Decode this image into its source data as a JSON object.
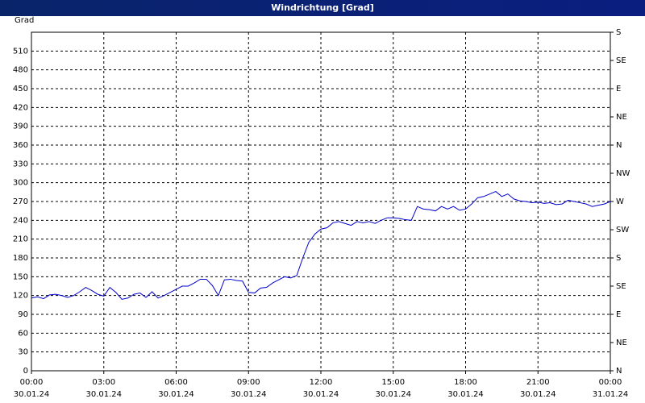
{
  "chart_data": {
    "type": "line",
    "title": "Windrichtung [Grad]",
    "y_label": "Grad",
    "x": [
      0,
      0.25,
      0.5,
      0.75,
      1,
      1.25,
      1.5,
      1.75,
      2,
      2.25,
      2.5,
      2.75,
      3,
      3.25,
      3.5,
      3.75,
      4,
      4.25,
      4.5,
      4.75,
      5,
      5.25,
      5.5,
      5.75,
      6,
      6.25,
      6.5,
      6.75,
      7,
      7.25,
      7.5,
      7.75,
      8,
      8.25,
      8.5,
      8.75,
      9,
      9.25,
      9.5,
      9.75,
      10,
      10.25,
      10.5,
      10.75,
      11,
      11.25,
      11.5,
      11.75,
      12,
      12.25,
      12.5,
      12.75,
      13,
      13.25,
      13.5,
      13.75,
      14,
      14.25,
      14.5,
      14.75,
      15,
      15.25,
      15.5,
      15.75,
      16,
      16.25,
      16.5,
      16.75,
      17,
      17.25,
      17.5,
      17.75,
      18,
      18.25,
      18.5,
      18.75,
      19,
      19.25,
      19.5,
      19.75,
      20,
      20.25,
      20.5,
      20.75,
      21,
      21.25,
      21.5,
      21.75,
      22,
      22.25,
      22.5,
      22.75,
      23,
      23.25,
      23.5,
      23.75,
      24
    ],
    "series": [
      {
        "name": "Windrichtung",
        "color": "#0000cc",
        "values": [
          116,
          118,
          115,
          121,
          122,
          120,
          117,
          120,
          126,
          133,
          128,
          122,
          119,
          133,
          125,
          114,
          116,
          122,
          124,
          117,
          126,
          116,
          120,
          125,
          130,
          135,
          135,
          140,
          146,
          146,
          136,
          120,
          145,
          146,
          144,
          143,
          125,
          124,
          132,
          133,
          140,
          145,
          150,
          148,
          152,
          180,
          205,
          218,
          226,
          228,
          236,
          238,
          235,
          232,
          238,
          236,
          238,
          235,
          240,
          244,
          244,
          243,
          241,
          240,
          262,
          258,
          257,
          255,
          262,
          258,
          262,
          256,
          258,
          266,
          276,
          278,
          282,
          286,
          278,
          282,
          274,
          271,
          270,
          268,
          269,
          267,
          268,
          265,
          266,
          272,
          270,
          268,
          266,
          262,
          264,
          266,
          270
        ]
      }
    ],
    "xlim": [
      0,
      24
    ],
    "xticks": [
      {
        "value": 0,
        "label": "00:00"
      },
      {
        "value": 3,
        "label": "03:00"
      },
      {
        "value": 6,
        "label": "06:00"
      },
      {
        "value": 9,
        "label": "09:00"
      },
      {
        "value": 12,
        "label": "12:00"
      },
      {
        "value": 15,
        "label": "15:00"
      },
      {
        "value": 18,
        "label": "18:00"
      },
      {
        "value": 21,
        "label": "21:00"
      },
      {
        "value": 24,
        "label": "00:00"
      }
    ],
    "xtick_dates": [
      "30.01.24",
      "30.01.24",
      "30.01.24",
      "30.01.24",
      "30.01.24",
      "30.01.24",
      "30.01.24",
      "30.01.24",
      "31.01.24"
    ],
    "ylim": [
      0,
      540
    ],
    "yticks": [
      0,
      30,
      60,
      90,
      120,
      150,
      180,
      210,
      240,
      270,
      300,
      330,
      360,
      390,
      420,
      450,
      480,
      510
    ],
    "y2lim": [
      0,
      540
    ],
    "y2ticks": [
      {
        "value": 0,
        "label": "N"
      },
      {
        "value": 45,
        "label": "NE"
      },
      {
        "value": 90,
        "label": "E"
      },
      {
        "value": 135,
        "label": "SE"
      },
      {
        "value": 180,
        "label": "S"
      },
      {
        "value": 225,
        "label": "SW"
      },
      {
        "value": 270,
        "label": "W"
      },
      {
        "value": 315,
        "label": "NW"
      },
      {
        "value": 360,
        "label": "N"
      },
      {
        "value": 405,
        "label": "NE"
      },
      {
        "value": 450,
        "label": "E"
      },
      {
        "value": 495,
        "label": "SE"
      },
      {
        "value": 540,
        "label": "S"
      }
    ],
    "grid": true
  }
}
